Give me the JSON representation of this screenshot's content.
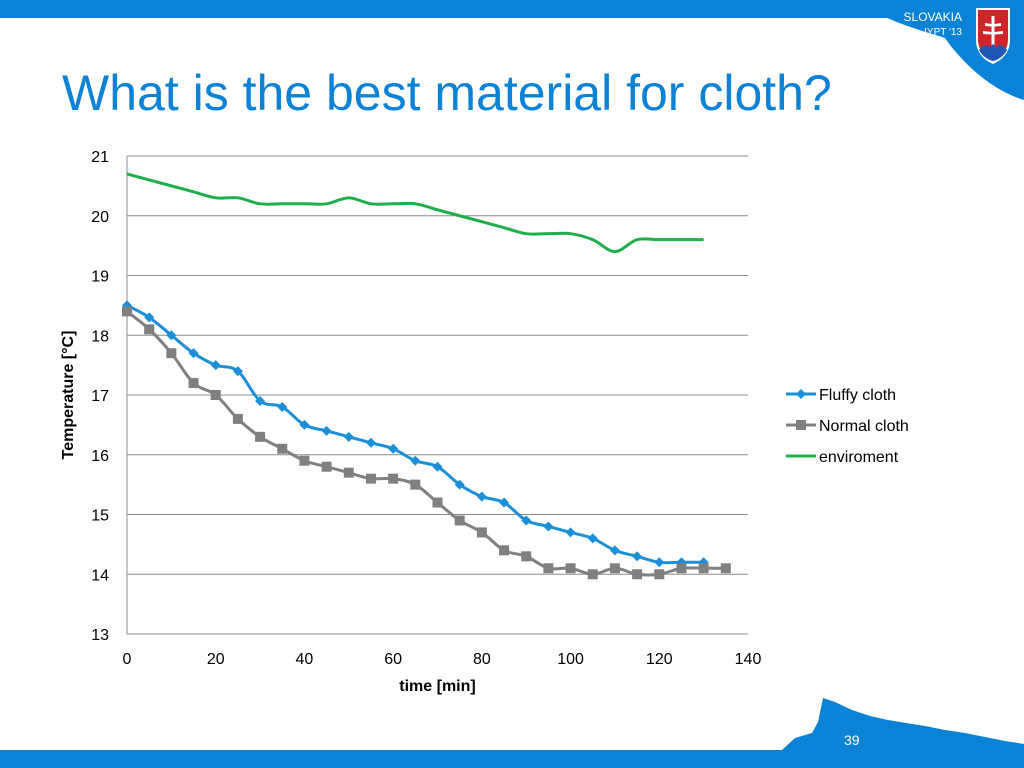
{
  "slide": {
    "title": "What is the best material for cloth?",
    "brand_country": "SLOVAKIA",
    "brand_event": "IYPT '13",
    "page_number": "39"
  },
  "colors": {
    "accent": "#0a82d6",
    "fluffy": "#1b8fd8",
    "normal": "#808080",
    "environment": "#1fae4a",
    "grid": "#8c8c8c",
    "coat_red": "#d2232a",
    "coat_blue": "#1f57b4"
  },
  "icons": {
    "logo": "slovak-coat-of-arms-icon",
    "decoration": "mountain-silhouette"
  },
  "chart_data": {
    "type": "line",
    "title": "",
    "xlabel": "time [min]",
    "ylabel": "Temperature [°C]",
    "xlim": [
      0,
      140
    ],
    "ylim": [
      13,
      21
    ],
    "xticks": [
      0,
      20,
      40,
      60,
      80,
      100,
      120,
      140
    ],
    "yticks": [
      13,
      14,
      15,
      16,
      17,
      18,
      19,
      20,
      21
    ],
    "grid": "horizontal",
    "legend_position": "right",
    "series": [
      {
        "name": "Fluffy cloth",
        "marker": "diamond",
        "x": [
          0,
          5,
          10,
          15,
          20,
          25,
          30,
          35,
          40,
          45,
          50,
          55,
          60,
          65,
          70,
          75,
          80,
          85,
          90,
          95,
          100,
          105,
          110,
          115,
          120,
          125,
          130
        ],
        "y": [
          18.5,
          18.3,
          18.0,
          17.7,
          17.5,
          17.4,
          16.9,
          16.8,
          16.5,
          16.4,
          16.3,
          16.2,
          16.1,
          15.9,
          15.8,
          15.5,
          15.3,
          15.2,
          14.9,
          14.8,
          14.7,
          14.6,
          14.4,
          14.3,
          14.2,
          14.2,
          14.2
        ]
      },
      {
        "name": "Normal cloth",
        "marker": "square",
        "x": [
          0,
          5,
          10,
          15,
          20,
          25,
          30,
          35,
          40,
          45,
          50,
          55,
          60,
          65,
          70,
          75,
          80,
          85,
          90,
          95,
          100,
          105,
          110,
          115,
          120,
          125,
          130,
          135
        ],
        "y": [
          18.4,
          18.1,
          17.7,
          17.2,
          17.0,
          16.6,
          16.3,
          16.1,
          15.9,
          15.8,
          15.7,
          15.6,
          15.6,
          15.5,
          15.2,
          14.9,
          14.7,
          14.4,
          14.3,
          14.1,
          14.1,
          14.0,
          14.1,
          14.0,
          14.0,
          14.1,
          14.1,
          14.1
        ]
      },
      {
        "name": "enviroment",
        "marker": "none",
        "x": [
          0,
          5,
          10,
          15,
          20,
          25,
          30,
          35,
          40,
          45,
          50,
          55,
          60,
          65,
          70,
          75,
          80,
          85,
          90,
          95,
          100,
          105,
          110,
          115,
          120,
          125,
          130
        ],
        "y": [
          20.7,
          20.6,
          20.5,
          20.4,
          20.3,
          20.3,
          20.2,
          20.2,
          20.2,
          20.2,
          20.3,
          20.2,
          20.2,
          20.2,
          20.1,
          20.0,
          19.9,
          19.8,
          19.7,
          19.7,
          19.7,
          19.6,
          19.4,
          19.6,
          19.6,
          19.6,
          19.6
        ]
      }
    ]
  }
}
